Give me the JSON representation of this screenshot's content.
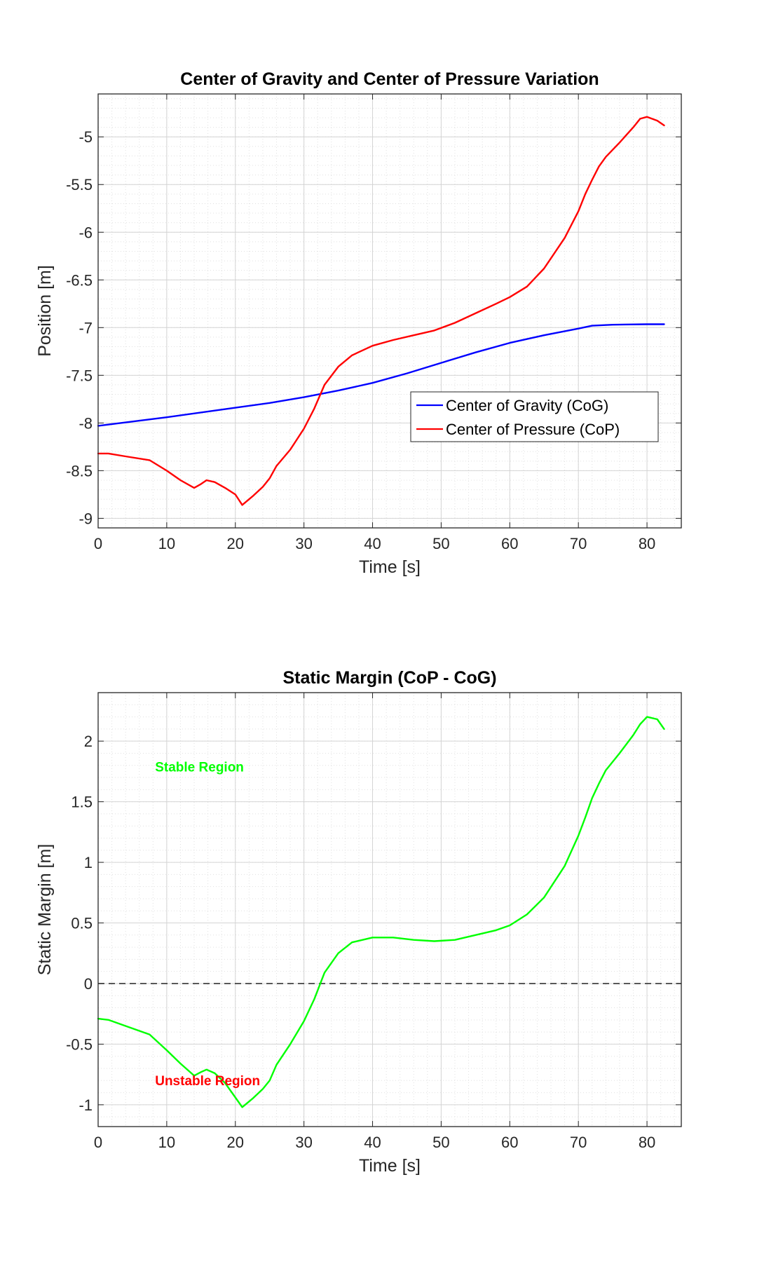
{
  "chart_data": [
    {
      "type": "line",
      "title": "Center of Gravity and Center of Pressure Variation",
      "xlabel": "Time [s]",
      "ylabel": "Position [m]",
      "xlim": [
        0,
        85
      ],
      "ylim": [
        -9.1,
        -4.55
      ],
      "xticks": [
        0,
        10,
        20,
        30,
        40,
        50,
        60,
        70,
        80
      ],
      "yticks": [
        -9,
        -8.5,
        -8,
        -7.5,
        -7,
        -6.5,
        -6,
        -5.5,
        -5
      ],
      "grid": true,
      "legend_position": "lower-right",
      "series": [
        {
          "name": "Center of Gravity (CoG)",
          "color": "#0000ff",
          "x": [
            0,
            10,
            20,
            25,
            30,
            35,
            40,
            45,
            50,
            55,
            60,
            65,
            70,
            72,
            75,
            80,
            82.5
          ],
          "y": [
            -8.03,
            -7.94,
            -7.84,
            -7.79,
            -7.73,
            -7.66,
            -7.58,
            -7.48,
            -7.37,
            -7.26,
            -7.16,
            -7.08,
            -7.01,
            -6.98,
            -6.97,
            -6.965,
            -6.965
          ]
        },
        {
          "name": "Center of Pressure (CoP)",
          "color": "#ff0000",
          "x": [
            0,
            1.5,
            4,
            7.5,
            10,
            12,
            14,
            15,
            15.8,
            17,
            18.5,
            20,
            21,
            22.5,
            24,
            25,
            26,
            28,
            30,
            31.5,
            33,
            35,
            37,
            40,
            43,
            46,
            49,
            52,
            55,
            58,
            60,
            62.5,
            65,
            68,
            70,
            71,
            72,
            73,
            74,
            76,
            78,
            79,
            80,
            81.5,
            82.5
          ],
          "y": [
            -8.32,
            -8.32,
            -8.35,
            -8.39,
            -8.5,
            -8.6,
            -8.68,
            -8.64,
            -8.6,
            -8.62,
            -8.68,
            -8.75,
            -8.86,
            -8.77,
            -8.67,
            -8.58,
            -8.45,
            -8.28,
            -8.06,
            -7.85,
            -7.6,
            -7.41,
            -7.29,
            -7.19,
            -7.13,
            -7.08,
            -7.03,
            -6.95,
            -6.85,
            -6.75,
            -6.68,
            -6.57,
            -6.38,
            -6.06,
            -5.78,
            -5.6,
            -5.45,
            -5.31,
            -5.21,
            -5.06,
            -4.9,
            -4.81,
            -4.79,
            -4.83,
            -4.88
          ]
        }
      ]
    },
    {
      "type": "line",
      "title": "Static Margin (CoP - CoG)",
      "xlabel": "Time [s]",
      "ylabel": "Static Margin [m]",
      "xlim": [
        0,
        85
      ],
      "ylim": [
        -1.18,
        2.4
      ],
      "xticks": [
        0,
        10,
        20,
        30,
        40,
        50,
        60,
        70,
        80
      ],
      "yticks": [
        -1,
        -0.5,
        0,
        0.5,
        1,
        1.5,
        2
      ],
      "grid": true,
      "reference_line": {
        "y": 0,
        "style": "dashed",
        "color": "#333333"
      },
      "annotations": [
        {
          "text": "Stable Region",
          "x": 8.3,
          "y": 1.75,
          "color": "#00ff00"
        },
        {
          "text": "Unstable Region",
          "x": 8.3,
          "y": -0.84,
          "color": "#ff0000"
        }
      ],
      "series": [
        {
          "color": "#00ff00",
          "x": [
            0,
            1.5,
            4,
            7.5,
            10,
            12,
            14,
            15,
            15.8,
            17,
            18.5,
            20,
            21,
            22.5,
            24,
            25,
            26,
            28,
            30,
            31.5,
            33,
            35,
            37,
            40,
            43,
            46,
            49,
            52,
            55,
            58,
            60,
            62.5,
            65,
            68,
            70,
            71,
            72,
            73,
            74,
            76,
            78,
            79,
            80,
            81.5,
            82.5
          ],
          "y": [
            -0.29,
            -0.3,
            -0.35,
            -0.42,
            -0.55,
            -0.66,
            -0.76,
            -0.73,
            -0.71,
            -0.74,
            -0.82,
            -0.94,
            -1.02,
            -0.95,
            -0.87,
            -0.8,
            -0.67,
            -0.5,
            -0.31,
            -0.13,
            0.09,
            0.25,
            0.34,
            0.38,
            0.38,
            0.36,
            0.35,
            0.36,
            0.4,
            0.44,
            0.48,
            0.57,
            0.71,
            0.97,
            1.22,
            1.37,
            1.53,
            1.65,
            1.76,
            1.9,
            2.05,
            2.14,
            2.2,
            2.18,
            2.1
          ]
        }
      ]
    }
  ]
}
